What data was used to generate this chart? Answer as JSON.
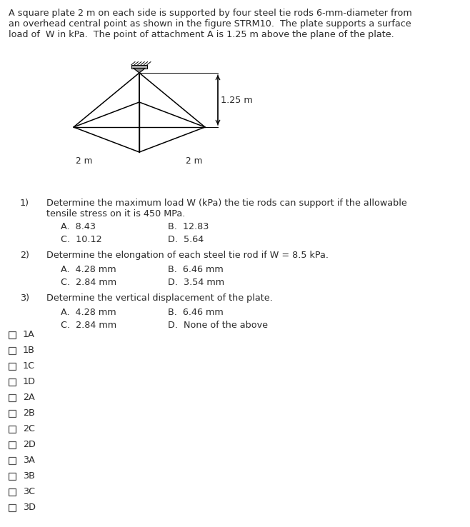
{
  "bg_color": "#ffffff",
  "text_color": "#2a2a2a",
  "paragraph_line1": "A square plate 2 m on each side is supported by four steel tie rods 6-mm-diameter from",
  "paragraph_line2": "an overhead central point as shown in the figure STRM10.  The plate supports a surface",
  "paragraph_line3": "load of  W in kPa.  The point of attachment A is 1.25 m above the plane of the plate.",
  "q1_num": "1)",
  "q1_line1": "Determine the maximum load W (kPa) the tie rods can support if the allowable",
  "q1_line2": "tensile stress on it is 450 MPa.",
  "q1_A": "A.  8.43",
  "q1_B": "B.  12.83",
  "q1_C": "C.  10.12",
  "q1_D": "D.  5.64",
  "q2_num": "2)",
  "q2_text": "Determine the elongation of each steel tie rod if W = 8.5 kPa.",
  "q2_A": "A.  4.28 mm",
  "q2_B": "B.  6.46 mm",
  "q2_C": "C.  2.84 mm",
  "q2_D": "D.  3.54 mm",
  "q3_num": "3)",
  "q3_text": "Determine the vertical displacement of the plate.",
  "q3_A": "A.  4.28 mm",
  "q3_B": "B.  6.46 mm",
  "q3_C": "C.  2.84 mm",
  "q3_D": "D.  None of the above",
  "checkboxes": [
    "1A",
    "1B",
    "1C",
    "1D",
    "2A",
    "2B",
    "2C",
    "2D",
    "3A",
    "3B",
    "3C",
    "3D"
  ],
  "dim_125": "1.25 m",
  "dim_2m_left": "2 m",
  "dim_2m_right": "2 m",
  "fs_body": 9.2,
  "fs_checkbox": 9.2
}
